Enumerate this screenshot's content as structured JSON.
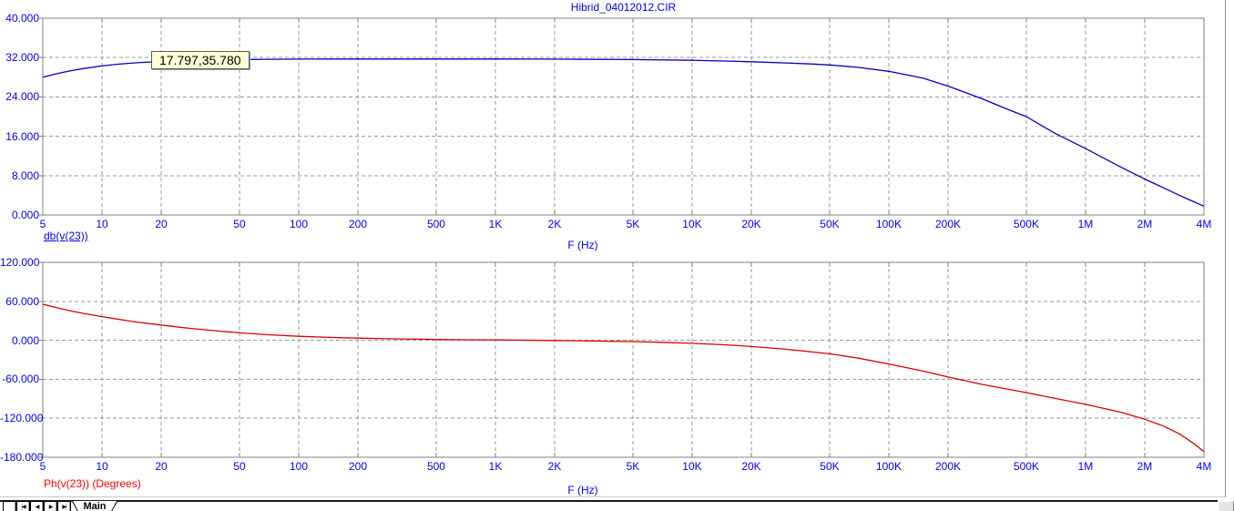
{
  "window": {
    "title": "Hibrid_04012012.CIR"
  },
  "colors": {
    "axis_text": "#0000FF",
    "magnitude_curve": "#0000C0",
    "phase_curve": "#DC0000",
    "phase_text": "#FF0000",
    "grid": "#9A9A9A",
    "frame": "#808080",
    "cursor_box_bg": "#FFFFD6",
    "cursor_box_border": "#5A5A5A"
  },
  "tabbar": {
    "tab_label": "Main",
    "scroll_buttons": [
      {
        "name": "spacer",
        "glyph": ""
      },
      {
        "name": "first-tab",
        "glyph": "|◀"
      },
      {
        "name": "prev-tab",
        "glyph": "◀"
      },
      {
        "name": "next-tab",
        "glyph": "▶"
      },
      {
        "name": "last-tab",
        "glyph": "▶|"
      }
    ]
  },
  "chart_data": [
    {
      "type": "line",
      "title": "Hibrid_04012012.CIR",
      "xlabel": "F (Hz)",
      "ylabel_trace": "db(v(23))",
      "x_scale": "log",
      "xlim": [
        5,
        4000000
      ],
      "ylim": [
        0,
        40
      ],
      "grid": true,
      "yticks": [
        40,
        32,
        24,
        16,
        8,
        0
      ],
      "ytick_labels": [
        "40.000",
        "32.000",
        "24.000",
        "16.000",
        "8.000",
        "0.000"
      ],
      "xticks": [
        5,
        10,
        20,
        50,
        100,
        200,
        500,
        1000,
        2000,
        5000,
        10000,
        20000,
        50000,
        100000,
        200000,
        500000,
        1000000,
        2000000,
        4000000
      ],
      "xtick_labels": [
        "5",
        "10",
        "20",
        "50",
        "100",
        "200",
        "500",
        "1K",
        "2K",
        "5K",
        "10K",
        "20K",
        "50K",
        "100K",
        "200K",
        "500K",
        "1M",
        "2M",
        "4M"
      ],
      "annotation": {
        "x": 17.797,
        "y": 35.78,
        "label": "17.797,35.780"
      },
      "series": [
        {
          "name": "db(v(23))",
          "points": [
            [
              5,
              28.0
            ],
            [
              6,
              28.8
            ],
            [
              7,
              29.35
            ],
            [
              8,
              29.75
            ],
            [
              10,
              30.3
            ],
            [
              12,
              30.65
            ],
            [
              15,
              30.95
            ],
            [
              20,
              31.2
            ],
            [
              25,
              31.35
            ],
            [
              30,
              31.45
            ],
            [
              40,
              31.55
            ],
            [
              50,
              31.6
            ],
            [
              70,
              31.65
            ],
            [
              100,
              31.68
            ],
            [
              200,
              31.7
            ],
            [
              500,
              31.7
            ],
            [
              1000,
              31.7
            ],
            [
              2000,
              31.68
            ],
            [
              5000,
              31.6
            ],
            [
              10000,
              31.45
            ],
            [
              15000,
              31.3
            ],
            [
              20000,
              31.15
            ],
            [
              30000,
              30.9
            ],
            [
              40000,
              30.7
            ],
            [
              50000,
              30.5
            ],
            [
              70000,
              30.0
            ],
            [
              100000,
              29.2
            ],
            [
              150000,
              27.8
            ],
            [
              200000,
              26.2
            ],
            [
              300000,
              23.6
            ],
            [
              400000,
              21.5
            ],
            [
              500000,
              20.0
            ],
            [
              700000,
              16.6
            ],
            [
              1000000,
              13.5
            ],
            [
              1500000,
              9.8
            ],
            [
              2000000,
              7.3
            ],
            [
              2500000,
              5.5
            ],
            [
              3000000,
              4.0
            ],
            [
              3500000,
              2.8
            ],
            [
              4000000,
              1.8
            ]
          ]
        }
      ]
    },
    {
      "type": "line",
      "xlabel": "F (Hz)",
      "ylabel_trace": "Ph(v(23)) (Degrees)",
      "x_scale": "log",
      "xlim": [
        5,
        4000000
      ],
      "ylim": [
        -180,
        120
      ],
      "grid": true,
      "yticks": [
        120,
        60,
        0,
        -60,
        -120,
        -180
      ],
      "ytick_labels": [
        "120.000",
        "60.000",
        "0.000",
        "-60.000",
        "-120.000",
        "-180.000"
      ],
      "xticks": [
        5,
        10,
        20,
        50,
        100,
        200,
        500,
        1000,
        2000,
        5000,
        10000,
        20000,
        50000,
        100000,
        200000,
        500000,
        1000000,
        2000000,
        4000000
      ],
      "xtick_labels": [
        "5",
        "10",
        "20",
        "50",
        "100",
        "200",
        "500",
        "1K",
        "2K",
        "5K",
        "10K",
        "20K",
        "50K",
        "100K",
        "200K",
        "500K",
        "1M",
        "2M",
        "4M"
      ],
      "series": [
        {
          "name": "Ph(v(23)) (Degrees)",
          "points": [
            [
              5,
              55.5
            ],
            [
              6,
              49.5
            ],
            [
              7,
              45.0
            ],
            [
              8,
              41.5
            ],
            [
              10,
              36.5
            ],
            [
              12,
              32.5
            ],
            [
              15,
              28.0
            ],
            [
              20,
              23.5
            ],
            [
              25,
              20.0
            ],
            [
              30,
              17.5
            ],
            [
              40,
              14.0
            ],
            [
              50,
              11.5
            ],
            [
              70,
              8.5
            ],
            [
              100,
              6.2
            ],
            [
              150,
              4.3
            ],
            [
              200,
              3.3
            ],
            [
              300,
              2.2
            ],
            [
              500,
              1.3
            ],
            [
              700,
              0.9
            ],
            [
              1000,
              0.5
            ],
            [
              2000,
              -0.3
            ],
            [
              3000,
              -1.0
            ],
            [
              5000,
              -2.0
            ],
            [
              7000,
              -3.1
            ],
            [
              10000,
              -4.6
            ],
            [
              15000,
              -7.0
            ],
            [
              20000,
              -9.6
            ],
            [
              30000,
              -13.8
            ],
            [
              50000,
              -20.8
            ],
            [
              70000,
              -27.5
            ],
            [
              100000,
              -36.5
            ],
            [
              150000,
              -47.5
            ],
            [
              200000,
              -56.5
            ],
            [
              300000,
              -68.0
            ],
            [
              400000,
              -75.0
            ],
            [
              500000,
              -80.5
            ],
            [
              700000,
              -89.5
            ],
            [
              1000000,
              -98.5
            ],
            [
              1500000,
              -110.5
            ],
            [
              2000000,
              -121.5
            ],
            [
              2500000,
              -132.0
            ],
            [
              3000000,
              -144.0
            ],
            [
              3500000,
              -157.5
            ],
            [
              4000000,
              -171.5
            ]
          ]
        }
      ]
    }
  ]
}
